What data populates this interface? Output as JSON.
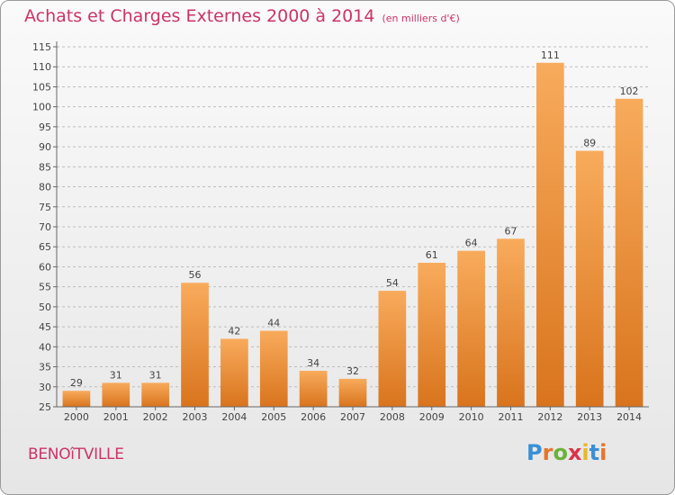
{
  "header": {
    "title": "Achats et Charges Externes 2000 à 2014",
    "subtitle": "(en milliers d'€)"
  },
  "footer": {
    "town": "BENOîTVILLE",
    "logo": "Proxiti"
  },
  "colors": {
    "title": "#cc3366",
    "bar_light": "#f7a757",
    "bar_dark": "#e07d24",
    "bar_shade": "#c96a1a"
  },
  "chart_data": {
    "type": "bar",
    "title": "Achats et Charges Externes 2000 à 2014",
    "subtitle": "(en milliers d'€)",
    "categories": [
      "2000",
      "2001",
      "2002",
      "2003",
      "2004",
      "2005",
      "2006",
      "2007",
      "2008",
      "2009",
      "2010",
      "2011",
      "2012",
      "2013",
      "2014"
    ],
    "values": [
      29,
      31,
      31,
      56,
      42,
      44,
      34,
      32,
      54,
      61,
      64,
      67,
      111,
      89,
      102
    ],
    "ylim": [
      25,
      115
    ],
    "yticks": [
      25,
      30,
      35,
      40,
      45,
      50,
      55,
      60,
      65,
      70,
      75,
      80,
      85,
      90,
      95,
      100,
      105,
      110,
      115
    ],
    "grid": "horizontal dashed",
    "xlabel": "",
    "ylabel": ""
  }
}
